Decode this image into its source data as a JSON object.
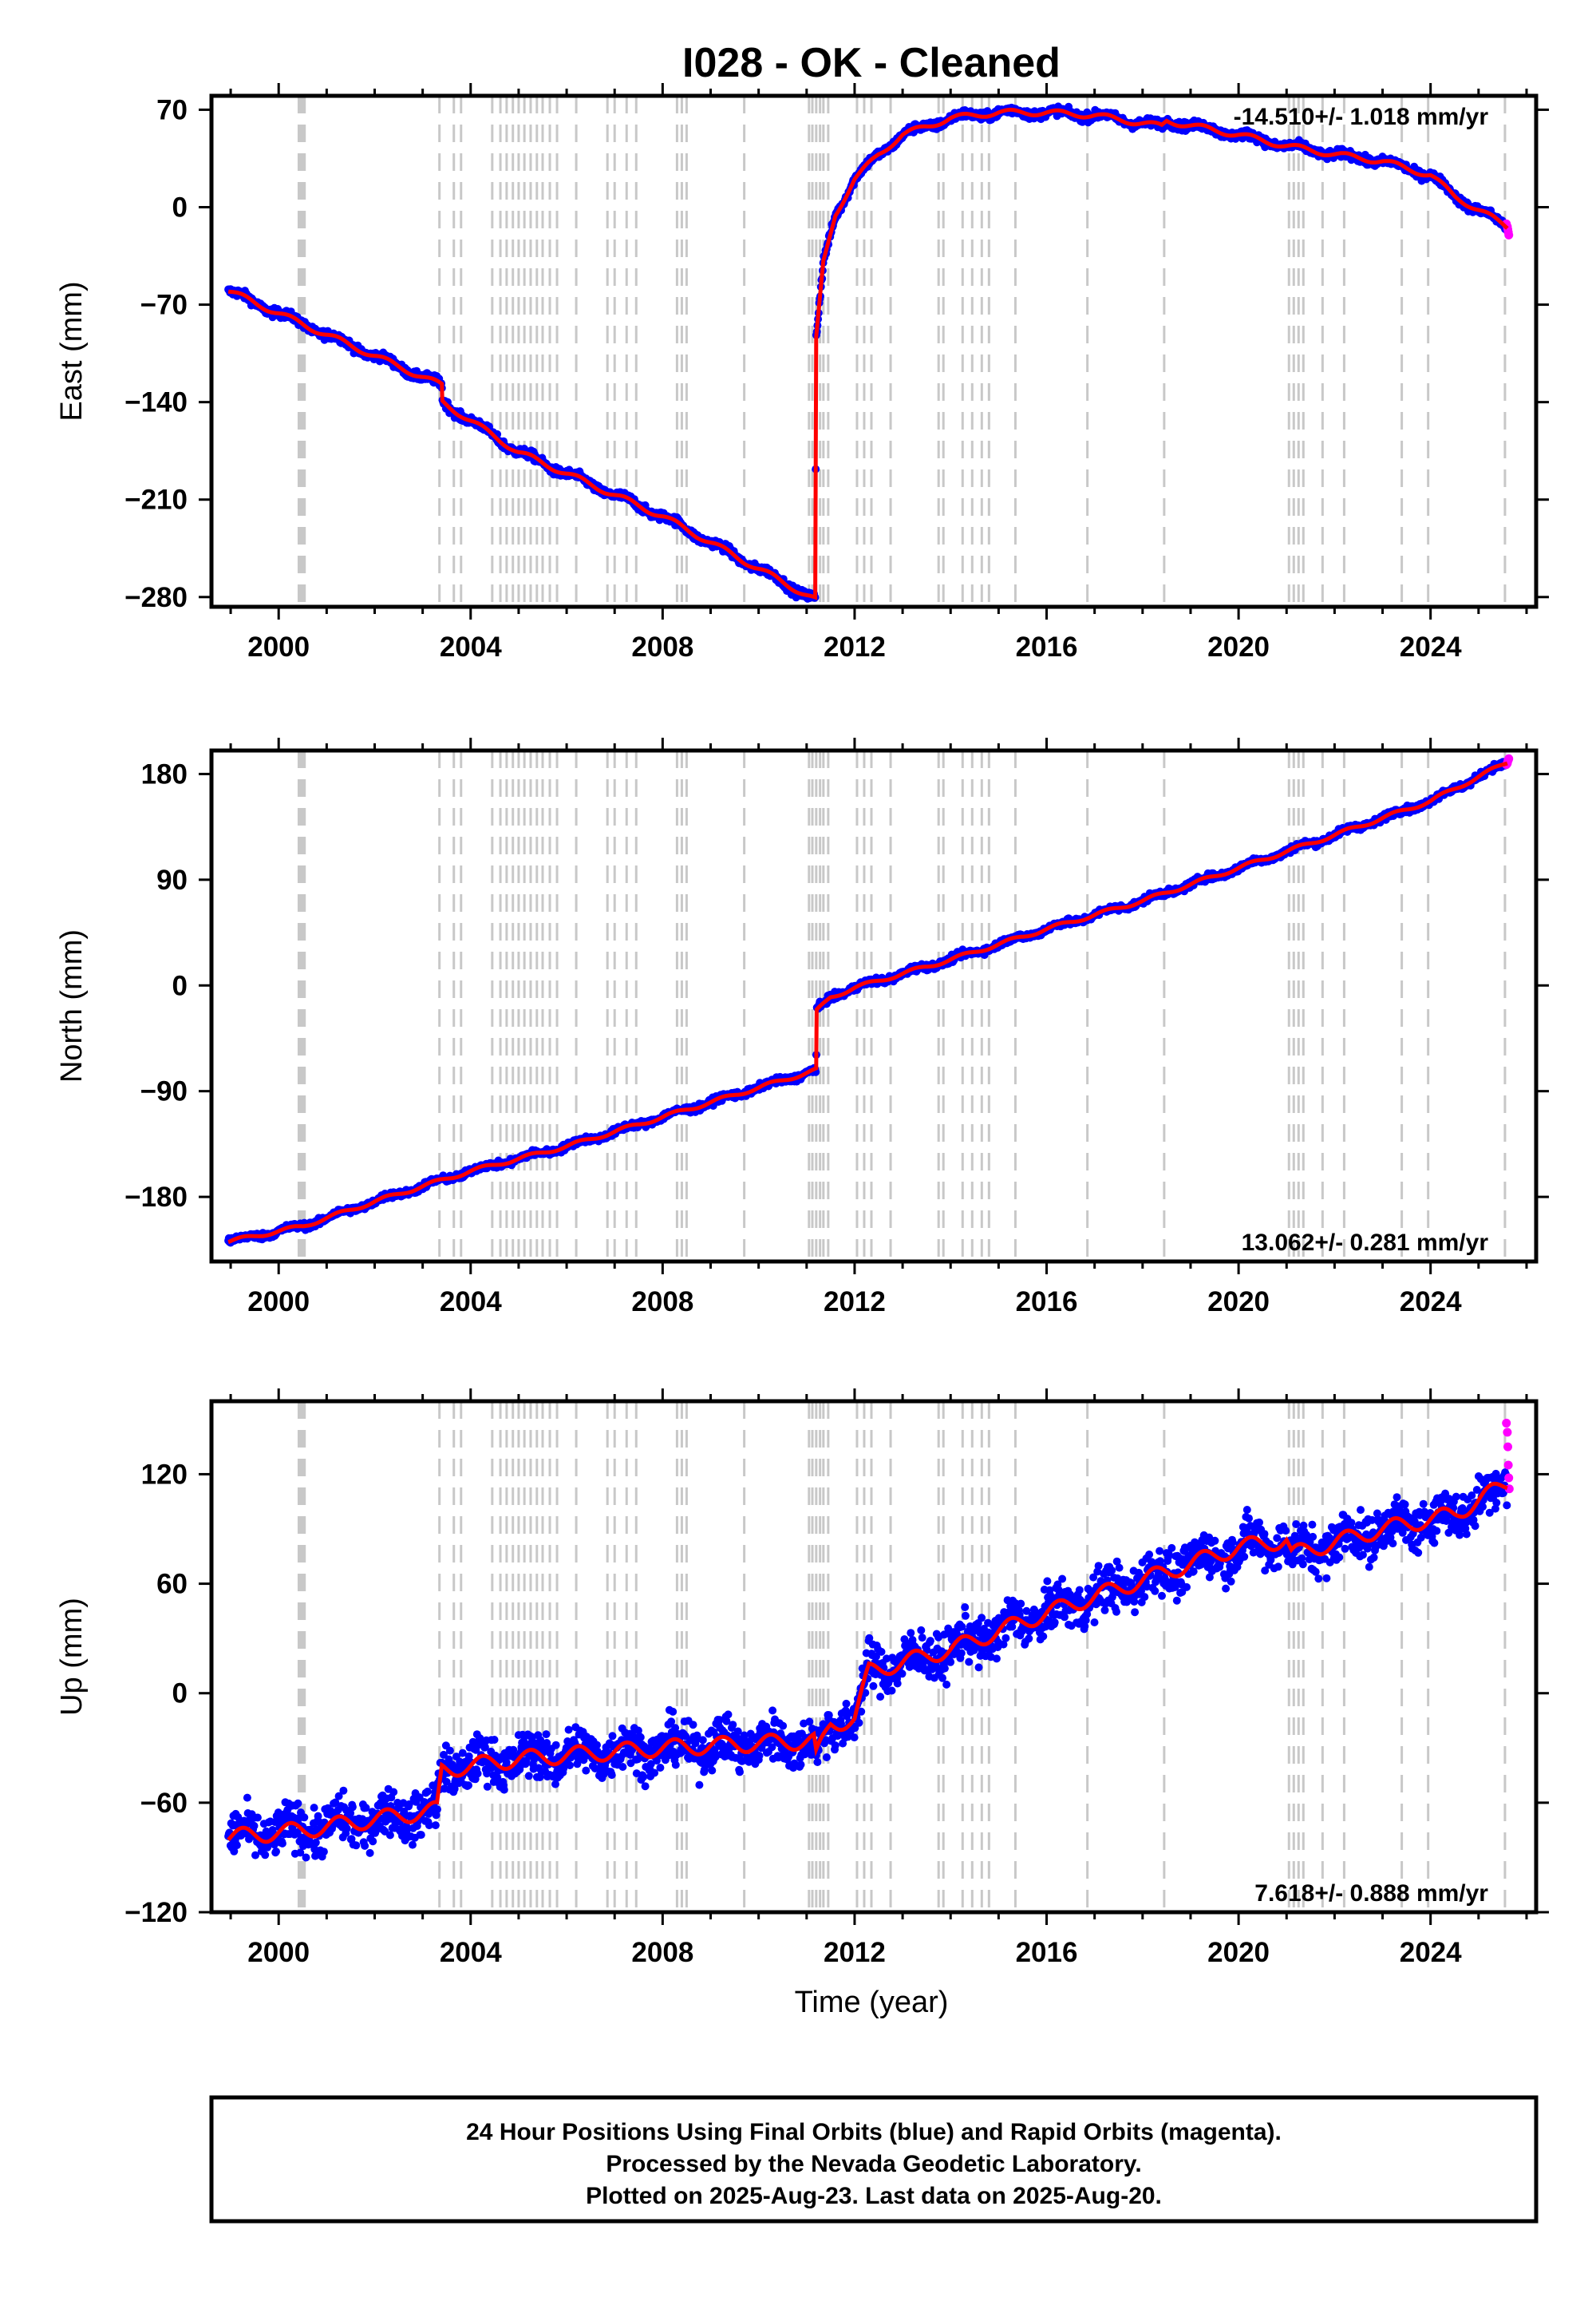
{
  "title": "I028  - OK - Cleaned",
  "colors": {
    "final_orbits": "#0000ff",
    "rapid_orbits": "#ff00ff",
    "model": "#ff0000",
    "event_lines": "#c8c8c8"
  },
  "xlabel": "Time (year)",
  "footer": {
    "line1": "24 Hour Positions Using Final Orbits (blue) and Rapid Orbits (magenta).",
    "line2": "Processed by the Nevada Geodetic Laboratory.",
    "line3": "Plotted on 2025-Aug-23. Last data on 2025-Aug-20."
  },
  "chart_data": [
    {
      "type": "scatter",
      "component": "east",
      "ylabel": "East (mm)",
      "rate": "-14.510+/- 1.018 mm/yr",
      "rate_placement": "top-right",
      "xlim": [
        1998.6,
        2026.2
      ],
      "ylim": [
        -287,
        80
      ],
      "xticks": [
        2000,
        2004,
        2008,
        2012,
        2016,
        2020,
        2024
      ],
      "yticks": [
        70,
        0,
        -70,
        -140,
        -210,
        -280
      ],
      "series": [
        {
          "role": "final-orbits-daily",
          "trend": [
            [
              1998.95,
              -60
            ],
            [
              2000.5,
              -84
            ],
            [
              2003.4,
              -128
            ],
            [
              2003.41,
              -140
            ],
            [
              2005.0,
              -176
            ],
            [
              2008.0,
              -222
            ],
            [
              2011.18,
              -282
            ],
            [
              2011.2,
              -95
            ],
            [
              2011.35,
              -40
            ],
            [
              2011.6,
              -5
            ],
            [
              2012.0,
              20
            ],
            [
              2012.5,
              38
            ],
            [
              2013.0,
              52
            ],
            [
              2014.0,
              64
            ],
            [
              2015.0,
              68
            ],
            [
              2016.0,
              68
            ],
            [
              2017.0,
              66
            ],
            [
              2018.4,
              58
            ],
            [
              2018.5,
              62
            ],
            [
              2020.0,
              52
            ],
            [
              2021.0,
              44
            ],
            [
              2022.0,
              38
            ],
            [
              2023.0,
              33
            ],
            [
              2024.0,
              23
            ],
            [
              2024.5,
              8
            ],
            [
              2025.6,
              -14
            ]
          ],
          "noise": 2.2,
          "seasonal": 2.0
        },
        {
          "role": "rapid-orbits-daily",
          "points": [
            [
              2025.58,
              -12
            ],
            [
              2025.6,
              -14
            ],
            [
              2025.61,
              -16
            ],
            [
              2025.62,
              -18
            ],
            [
              2025.63,
              -20
            ]
          ]
        }
      ]
    },
    {
      "type": "scatter",
      "component": "north",
      "ylabel": "North (mm)",
      "rate": "13.062+/- 0.281 mm/yr",
      "rate_placement": "bottom-right",
      "xlim": [
        1998.6,
        2026.2
      ],
      "ylim": [
        -235,
        200
      ],
      "xticks": [
        2000,
        2004,
        2008,
        2012,
        2016,
        2020,
        2024
      ],
      "yticks": [
        180,
        90,
        0,
        -90,
        -180
      ],
      "series": [
        {
          "role": "final-orbits-daily",
          "trend": [
            [
              1998.95,
              -218
            ],
            [
              2000.5,
              -205
            ],
            [
              2002.0,
              -184
            ],
            [
              2004.0,
              -158
            ],
            [
              2006.0,
              -137
            ],
            [
              2008.0,
              -112
            ],
            [
              2011.2,
              -72
            ],
            [
              2011.21,
              -22
            ],
            [
              2011.5,
              -10
            ],
            [
              2012.0,
              -2
            ],
            [
              2014.0,
              22
            ],
            [
              2016.0,
              48
            ],
            [
              2018.0,
              72
            ],
            [
              2020.0,
              100
            ],
            [
              2022.0,
              128
            ],
            [
              2024.0,
              157
            ],
            [
              2025.6,
              190
            ]
          ],
          "noise": 2.0,
          "seasonal": 1.6
        },
        {
          "role": "rapid-orbits-daily",
          "points": [
            [
              2025.58,
              188
            ],
            [
              2025.6,
              189
            ],
            [
              2025.61,
              191
            ],
            [
              2025.62,
              192
            ],
            [
              2025.63,
              193
            ]
          ]
        }
      ]
    },
    {
      "type": "scatter",
      "component": "up",
      "ylabel": "Up (mm)",
      "rate": "7.618+/- 0.888 mm/yr",
      "rate_placement": "bottom-right",
      "xlim": [
        1998.6,
        2026.2
      ],
      "ylim": [
        -120,
        160
      ],
      "xticks": [
        2000,
        2004,
        2008,
        2012,
        2016,
        2020,
        2024
      ],
      "yticks": [
        120,
        60,
        0,
        -60,
        -120
      ],
      "series": [
        {
          "role": "final-orbits-daily",
          "trend": [
            [
              1998.95,
              -79
            ],
            [
              2000.5,
              -75
            ],
            [
              2003.3,
              -64
            ],
            [
              2003.4,
              -42
            ],
            [
              2005.0,
              -36
            ],
            [
              2008.0,
              -30
            ],
            [
              2011.15,
              -26
            ],
            [
              2011.2,
              -35
            ],
            [
              2011.5,
              -17
            ],
            [
              2012.0,
              -14
            ],
            [
              2012.3,
              12
            ],
            [
              2014.0,
              24
            ],
            [
              2016.0,
              44
            ],
            [
              2018.0,
              62
            ],
            [
              2020.0,
              80
            ],
            [
              2021.0,
              84
            ],
            [
              2021.1,
              76
            ],
            [
              2023.0,
              90
            ],
            [
              2024.5,
              98
            ],
            [
              2025.6,
              115
            ]
          ],
          "noise": 9.0,
          "seasonal": 4.5
        },
        {
          "role": "rapid-orbits-daily",
          "points": [
            [
              2025.58,
              148
            ],
            [
              2025.6,
              143
            ],
            [
              2025.61,
              135
            ],
            [
              2025.62,
              125
            ],
            [
              2025.63,
              118
            ],
            [
              2025.64,
              112
            ]
          ]
        }
      ]
    }
  ],
  "event_years": [
    2000.42,
    2000.45,
    2000.48,
    2000.51,
    2000.54,
    2003.35,
    2003.65,
    2003.8,
    2004.45,
    2004.62,
    2004.75,
    2004.88,
    2005.0,
    2005.12,
    2005.25,
    2005.38,
    2005.5,
    2005.65,
    2005.8,
    2006.2,
    2006.85,
    2007.0,
    2007.25,
    2007.45,
    2008.3,
    2008.4,
    2008.5,
    2009.7,
    2011.05,
    2011.12,
    2011.2,
    2011.28,
    2011.35,
    2011.45,
    2012.05,
    2012.2,
    2012.35,
    2012.75,
    2013.75,
    2013.85,
    2014.25,
    2014.45,
    2014.65,
    2014.8,
    2015.35,
    2016.85,
    2018.45,
    2021.05,
    2021.15,
    2021.25,
    2021.35,
    2021.75,
    2022.2,
    2023.4,
    2023.95,
    2025.55
  ]
}
